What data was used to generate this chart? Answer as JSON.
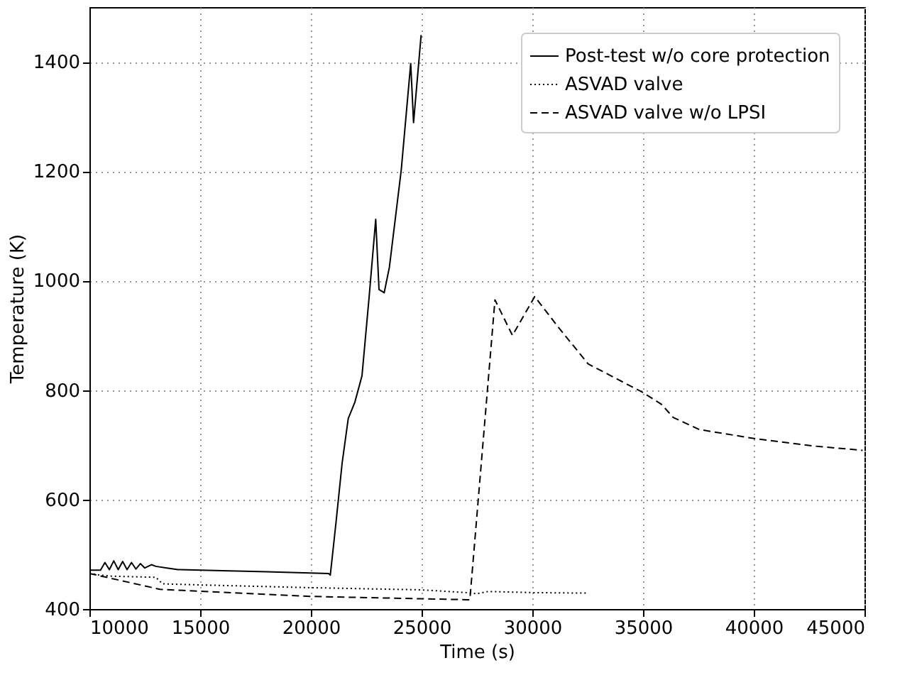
{
  "chart_data": {
    "type": "line",
    "xlabel": "Time (s)",
    "ylabel": "Temperature (K)",
    "xlim": [
      10000,
      45000
    ],
    "xticks": [
      10000,
      15000,
      20000,
      25000,
      30000,
      35000,
      40000,
      45000
    ],
    "ylim": [
      400,
      1500
    ],
    "yticks": [
      400,
      600,
      800,
      1000,
      1200,
      1400
    ],
    "grid": true,
    "legend": "top right",
    "marker": "none",
    "series": [
      {
        "name": "Post-test w/o core protection",
        "color": "#000000",
        "line_style": "solid",
        "x": [
          10000,
          10500,
          10700,
          10900,
          11100,
          11300,
          11500,
          11700,
          11900,
          12100,
          12300,
          12500,
          12800,
          13000,
          13500,
          14000,
          16000,
          18000,
          20800,
          20878,
          21135,
          21410,
          21688,
          21987,
          22308,
          22628,
          22928,
          23077,
          23312,
          23547,
          24083,
          24509,
          24637,
          24979
        ],
        "values": [
          471,
          471,
          485,
          472,
          488,
          472,
          487,
          472,
          485,
          473,
          483,
          475,
          481,
          478,
          475,
          472,
          470,
          468,
          465,
          462,
          558,
          666,
          748,
          778,
          826,
          969,
          1112,
          984,
          978,
          1025,
          1203,
          1397,
          1289,
          1449
        ]
      },
      {
        "name": "ASVAD valve",
        "color": "#000000",
        "line_style": "dotted",
        "x": [
          10000,
          10500,
          11000,
          13000,
          13300,
          15000,
          20000,
          25000,
          27000,
          27500,
          28000,
          30000,
          32500
        ],
        "values": [
          465,
          462,
          460,
          458,
          446,
          444,
          439,
          435,
          430,
          428,
          432,
          430,
          429
        ]
      },
      {
        "name": "ASVAD valve w/o LPSI",
        "color": "#000000",
        "line_style": "dashed",
        "x": [
          10000,
          13186,
          20020,
          27071,
          27180,
          28314,
          29103,
          30109,
          31135,
          32520,
          34979,
          35833,
          36365,
          37545,
          40109,
          42673,
          44917
        ],
        "values": [
          465,
          436,
          423,
          417,
          417,
          965,
          900,
          971,
          917,
          848,
          796,
          774,
          750,
          728,
          711,
          698,
          690
        ]
      }
    ]
  }
}
